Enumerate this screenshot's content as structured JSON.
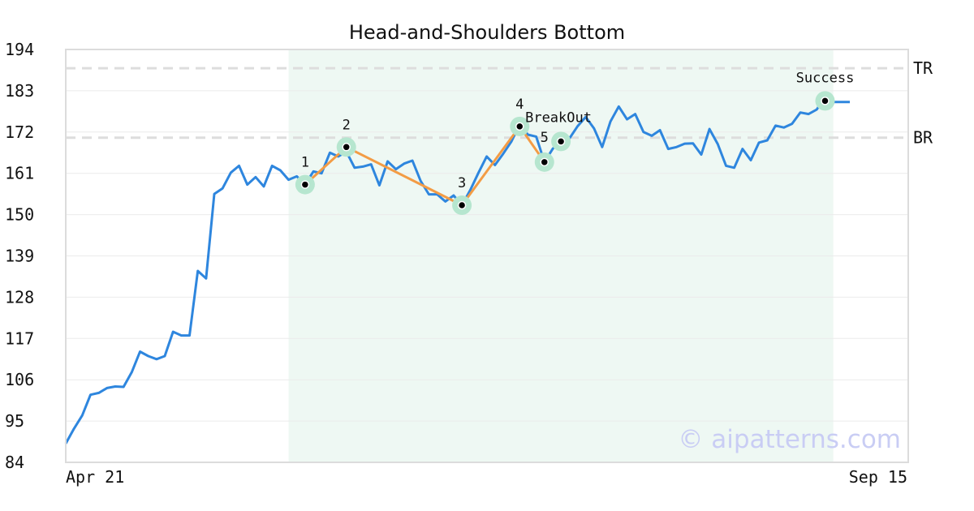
{
  "chart_data": {
    "type": "line",
    "title": "Head-and-Shoulders Bottom",
    "xlabel": "",
    "ylabel": "",
    "ylim": [
      84,
      194
    ],
    "yticks": [
      194,
      183,
      172,
      161,
      150,
      139,
      128,
      117,
      106,
      95,
      84
    ],
    "x_tick_labels": [
      "Apr 21",
      "Sep 15"
    ],
    "grid": true,
    "watermark": "© aipatterns.com",
    "colors": {
      "price": "#2e86de",
      "pattern": "#f39c45",
      "highlight_band": "#eef8f3",
      "marker_halo": "#b6e6cf",
      "reference_line": "#dddddd"
    },
    "series": [
      {
        "values": [
          89,
          93,
          96.5,
          102,
          102.5,
          103.8,
          104.2,
          104.1,
          108,
          113.5,
          112.3,
          111.5,
          112.3,
          118.8,
          117.8,
          117.8,
          135,
          133,
          155.5,
          157,
          161.2,
          163,
          158,
          160,
          157.5,
          163,
          161.8,
          159.3,
          160.2,
          158,
          161.5,
          161,
          166.5,
          165.5,
          166.8,
          162.5,
          162.8,
          163.4,
          157.8,
          164.2,
          162.1,
          163.6,
          164.4,
          159,
          155.4,
          155.4,
          153.5,
          155.1,
          152.5,
          156.5,
          161.1,
          165.5,
          163.2,
          166.2,
          169.5,
          174,
          171.3,
          170.8,
          164,
          167.5,
          169.8,
          170.2,
          173.5,
          176,
          173,
          168,
          174.8,
          178.8,
          175.4,
          176.8,
          172,
          171,
          172.5,
          167.5,
          168,
          168.9,
          169,
          166,
          172.8,
          168.8,
          163,
          162.5,
          167.5,
          164.5,
          169.2,
          169.8,
          173.7,
          173.2,
          174.2,
          177.2,
          176.8,
          178,
          181.5,
          180,
          180,
          180
        ]
      }
    ],
    "pattern_points": [
      {
        "label": "1",
        "x_index": 29,
        "value": 158
      },
      {
        "label": "2",
        "x_index": 34,
        "value": 168
      },
      {
        "label": "3",
        "x_index": 48,
        "value": 152.5
      },
      {
        "label": "4",
        "x_index": 55,
        "value": 173.5
      },
      {
        "label": "5",
        "x_index": 58,
        "value": 164
      },
      {
        "label": "BreakOut",
        "x_index": 60,
        "value": 169.5
      },
      {
        "label": "Success",
        "x_index": 92,
        "value": 180.3
      }
    ],
    "pattern_path_indices": [
      0,
      1,
      2,
      3,
      4
    ],
    "highlight_range": [
      27,
      93
    ],
    "reference_lines": [
      {
        "label": "TR",
        "value": 189
      },
      {
        "label": "BR",
        "value": 170.5
      }
    ]
  }
}
